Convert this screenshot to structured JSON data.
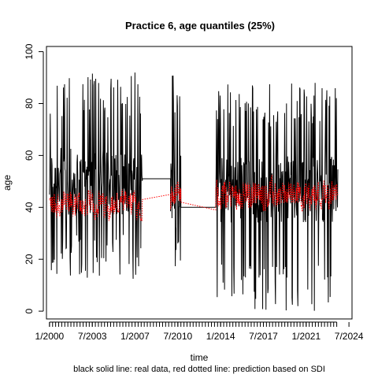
{
  "chart_data": {
    "type": "line",
    "title": "Practice 6, age quantiles (25%)",
    "xlabel": "time",
    "ylabel": "age",
    "caption": "black solid line: real data, red dotted line: prediction based on SDI",
    "xlim": [
      1999.75,
      2024.75
    ],
    "ylim": [
      -3,
      102
    ],
    "yticks": [
      0,
      20,
      40,
      60,
      80,
      100
    ],
    "xtick_labels": [
      "1/2000",
      "7/2003",
      "1/2007",
      "7/2010",
      "1/2014",
      "7/2017",
      "1/2021",
      "7/2024"
    ],
    "xtick_values": [
      2000.0,
      2003.5,
      2007.0,
      2010.5,
      2014.0,
      2017.5,
      2021.0,
      2024.5
    ],
    "minor_tick_step": 0.25,
    "minor_tick_range": [
      2000.0,
      2023.5
    ],
    "grid": false,
    "legend": "none",
    "segments": [
      {
        "start": 2000.0,
        "end": 2007.6,
        "real_low": 12,
        "real_high": 92,
        "real_center": 50,
        "pred_low": 34,
        "pred_high": 50,
        "pred_center": 41
      },
      {
        "start": 2009.9,
        "end": 2010.75,
        "real_low": 16,
        "real_high": 91,
        "real_center": 48,
        "pred_low": 38,
        "pred_high": 52,
        "pred_center": 45
      },
      {
        "start": 2013.6,
        "end": 2023.6,
        "real_low": 0,
        "real_high": 88,
        "real_center": 47,
        "pred_low": 37,
        "pred_high": 54,
        "pred_center": 45
      }
    ],
    "gaps": [
      {
        "from": 2007.6,
        "to": 2009.9,
        "real_value": 51,
        "pred_from": 43,
        "pred_to": 45
      },
      {
        "from": 2010.75,
        "to": 2013.6,
        "real_value": 40,
        "pred_from": 42,
        "pred_to": 39
      }
    ],
    "series": [
      {
        "name": "real data",
        "color": "#000000",
        "style": "solid"
      },
      {
        "name": "prediction based on SDI",
        "color": "#ff0000",
        "style": "dotted"
      }
    ]
  }
}
